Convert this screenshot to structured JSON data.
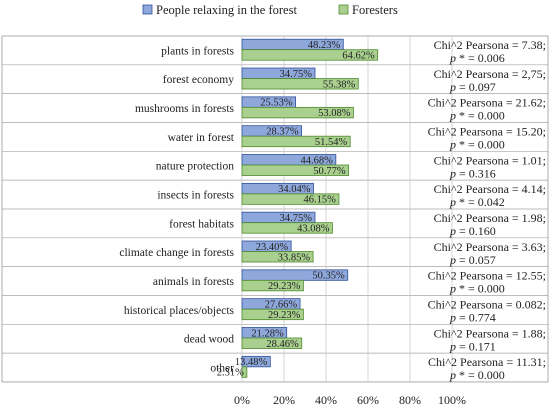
{
  "chart_data": {
    "type": "bar",
    "orientation": "horizontal",
    "legend_position": "top",
    "grid": true,
    "xlim": [
      0,
      100
    ],
    "x_ticks": [
      "0%",
      "20%",
      "40%",
      "60%",
      "80%",
      "100%"
    ],
    "colors": {
      "relaxing": "#8fa8dc",
      "foresters": "#a9d08e",
      "relaxing_border": "#2f4f9a",
      "foresters_border": "#4e8a2e"
    },
    "categories": [
      "plants in forests",
      "forest economy",
      "mushrooms in forests",
      "water in forest",
      "nature protection",
      "insects in forests",
      "forest habitats",
      "climate change in forests",
      "animals in forests",
      "historical places/objects",
      "dead wood",
      "other"
    ],
    "series": [
      {
        "name": "People relaxing in the forest",
        "values": [
          48.23,
          34.75,
          25.53,
          28.37,
          44.68,
          34.04,
          34.75,
          23.4,
          50.35,
          27.66,
          21.28,
          13.48
        ],
        "labels": [
          "48.23%",
          "34.75%",
          "25.53%",
          "28.37%",
          "44.68%",
          "34.04%",
          "34.75%",
          "23.40%",
          "50.35%",
          "27.66%",
          "21.28%",
          "13.48%"
        ]
      },
      {
        "name": "Foresters",
        "values": [
          64.62,
          55.38,
          53.08,
          51.54,
          50.77,
          46.15,
          43.08,
          33.85,
          29.23,
          29.23,
          28.46,
          2.31
        ],
        "labels": [
          "64.62%",
          "55.38%",
          "53.08%",
          "51.54%",
          "50.77%",
          "46.15%",
          "43.08%",
          "33.85%",
          "29.23%",
          "29.23%",
          "28.46%",
          "2.31%"
        ]
      }
    ],
    "annotations": [
      {
        "chi": "Chi^2 Pearsona = 7.38;",
        "p": "= 0.006",
        "p_star": true
      },
      {
        "chi": "Chi^2 Pearsona = 2,75;",
        "p": "= 0.097",
        "p_star": false
      },
      {
        "chi": "Chi^2 Pearsona = 21.62;",
        "p": "= 0.000",
        "p_star": true
      },
      {
        "chi": "Chi^2 Pearsona = 15.20;",
        "p": "= 0.000",
        "p_star": true
      },
      {
        "chi": "Chi^2 Pearsona = 1.01;",
        "p": "= 0.316",
        "p_star": false
      },
      {
        "chi": "Chi^2 Pearsona = 4.14;",
        "p": "= 0.042",
        "p_star": true
      },
      {
        "chi": "Chi^2 Pearsona = 1.98;",
        "p": "= 0.160",
        "p_star": false
      },
      {
        "chi": "Chi^2 Pearsona = 3.63;",
        "p": "= 0.057",
        "p_star": false
      },
      {
        "chi": "Chi^2 Pearsona = 12.55;",
        "p": "= 0.000",
        "p_star": true
      },
      {
        "chi": "Chi^2 Pearsona = 0.082;",
        "p": "= 0.774",
        "p_star": false
      },
      {
        "chi": "Chi^2 Pearsona = 1.88;",
        "p": "= 0.171",
        "p_star": false
      },
      {
        "chi": "Chi^2 Pearsona = 11.31;",
        "p": "= 0.000",
        "p_star": true
      }
    ]
  }
}
